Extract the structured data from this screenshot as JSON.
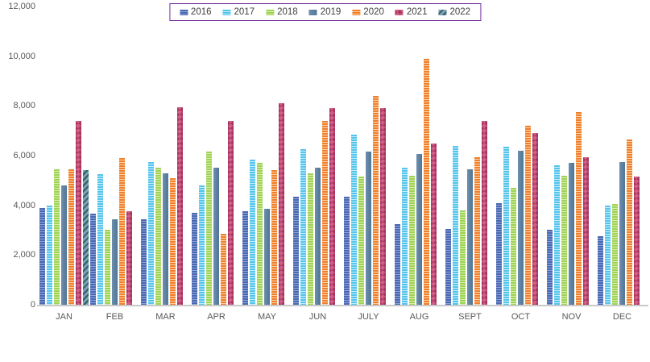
{
  "chart_data": {
    "type": "bar",
    "title": "",
    "xlabel": "",
    "ylabel": "",
    "ylim": [
      0,
      12000
    ],
    "ytick_step": 2000,
    "ytick_labels": [
      "0",
      "2,000",
      "4,000",
      "6,000",
      "8,000",
      "10,000",
      "12,000"
    ],
    "grid": false,
    "legend_position": "top-center",
    "legend_border_color": "#7030A0",
    "axis_text_color": "#595959",
    "categories": [
      "JAN",
      "FEB",
      "MAR",
      "APR",
      "MAY",
      "JUN",
      "JULY",
      "AUG",
      "SEPT",
      "OCT",
      "NOV",
      "DEC"
    ],
    "series": [
      {
        "name": "2016",
        "color": "#4a69b4",
        "pattern": "horizontal-stripes",
        "values": [
          3900,
          3650,
          3450,
          3700,
          3750,
          4350,
          4350,
          3250,
          3050,
          4100,
          3000,
          2750
        ]
      },
      {
        "name": "2017",
        "color": "#55c5ec",
        "pattern": "horizontal-stripes",
        "values": [
          4000,
          5250,
          5750,
          4800,
          5850,
          6250,
          6850,
          5500,
          6400,
          6350,
          5600,
          4000
        ]
      },
      {
        "name": "2018",
        "color": "#9fd356",
        "pattern": "horizontal-stripes",
        "values": [
          5450,
          3000,
          5500,
          6150,
          5700,
          5300,
          5150,
          5200,
          3800,
          4700,
          5200,
          4050
        ]
      },
      {
        "name": "2019",
        "color": "#5b7f9e",
        "pattern": "solid-gradient",
        "values": [
          4800,
          3450,
          5300,
          5500,
          3850,
          5500,
          6150,
          6050,
          5450,
          6200,
          5700,
          5750
        ]
      },
      {
        "name": "2020",
        "color": "#f0802c",
        "pattern": "horizontal-stripes",
        "values": [
          5450,
          5900,
          5100,
          2850,
          5400,
          7400,
          8400,
          9900,
          5950,
          7200,
          7750,
          6650
        ]
      },
      {
        "name": "2021",
        "color": "#c14b74",
        "pattern": "diamond-checker",
        "values": [
          7400,
          3750,
          7950,
          7400,
          8100,
          7900,
          7900,
          6500,
          7400,
          6900,
          5950,
          5150
        ]
      },
      {
        "name": "2022",
        "color": "#2e4d6b",
        "pattern": "diagonal-stripes",
        "values": [
          5400,
          null,
          null,
          null,
          null,
          null,
          null,
          null,
          null,
          null,
          null,
          null
        ]
      }
    ]
  }
}
